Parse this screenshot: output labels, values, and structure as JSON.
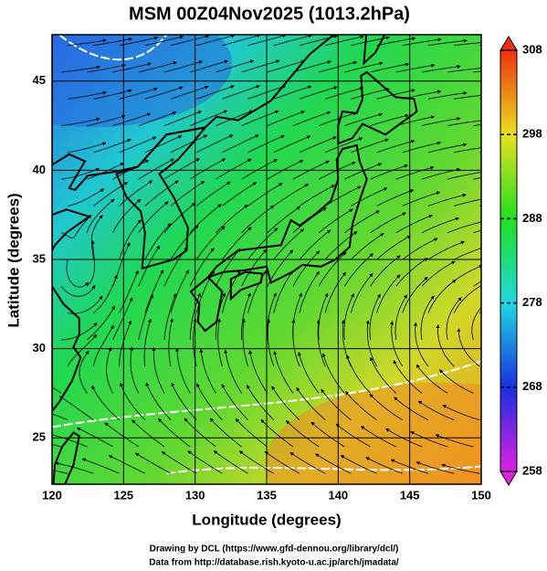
{
  "map": {
    "title": "MSM 00Z04Nov2025 (1013.2hPa)",
    "x_label": "Longitude (degrees)",
    "y_label": "Latitude  (degrees)",
    "xlim": [
      120,
      150
    ],
    "ylim": [
      22.4,
      47.6
    ],
    "xticks": [
      120,
      125,
      130,
      135,
      140,
      145,
      150
    ],
    "yticks": [
      25,
      30,
      35,
      40,
      45
    ],
    "grid": true,
    "colorbar": {
      "lim": [
        258,
        308
      ],
      "ticks": [
        258,
        268,
        278,
        288,
        298,
        308
      ],
      "colors": [
        "#e020e0",
        "#1830e0",
        "#20d8e0",
        "#20e020",
        "#e8e020",
        "#f03010"
      ]
    },
    "footer": [
      "Drawing by DCL (https://www.gfd-dennou.org/library/dcl/)",
      "Data from http://database.rish.kyoto-u.ac.jp/arch/jmadata/"
    ]
  }
}
